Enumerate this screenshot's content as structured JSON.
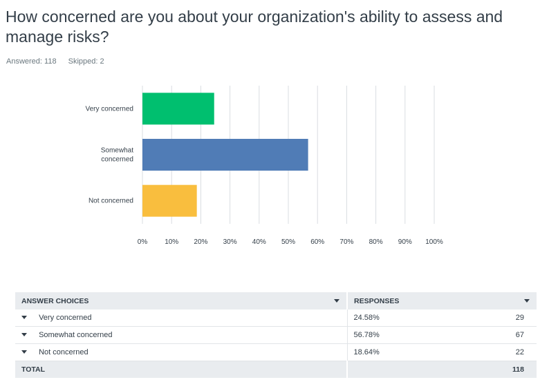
{
  "question": {
    "title": "How concerned are you about your organization's ability to assess and manage risks?",
    "answered": "Answered: 118",
    "skipped": "Skipped: 2"
  },
  "colors": {
    "very": "#00bf6f",
    "somewhat": "#507cb6",
    "not": "#f9be3e",
    "grid": "#d9dde1"
  },
  "chart_data": {
    "type": "bar",
    "orientation": "horizontal",
    "categories": [
      "Very concerned",
      "Somewhat concerned",
      "Not concerned"
    ],
    "values": [
      24.58,
      56.78,
      18.64
    ],
    "xlim": [
      0,
      100
    ],
    "xticks": [
      0,
      10,
      20,
      30,
      40,
      50,
      60,
      70,
      80,
      90,
      100
    ],
    "xtick_labels": [
      "0%",
      "10%",
      "20%",
      "30%",
      "40%",
      "50%",
      "60%",
      "70%",
      "80%",
      "90%",
      "100%"
    ],
    "grid": true,
    "legend": "none"
  },
  "table": {
    "headers": {
      "choices": "ANSWER CHOICES",
      "responses": "RESPONSES"
    },
    "rows": [
      {
        "choice": "Very concerned",
        "percent": "24.58%",
        "count": "29"
      },
      {
        "choice": "Somewhat concerned",
        "percent": "56.78%",
        "count": "67"
      },
      {
        "choice": "Not concerned",
        "percent": "18.64%",
        "count": "22"
      }
    ],
    "total": {
      "label": "TOTAL",
      "count": "118"
    }
  }
}
